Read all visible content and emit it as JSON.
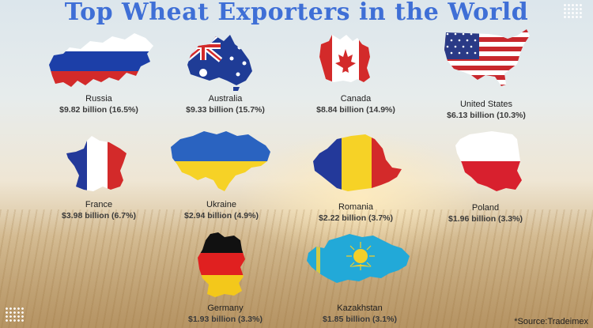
{
  "title": "Top Wheat Exporters in the World",
  "source": "*Source:Tradeimex",
  "countries": [
    {
      "name": "Russia",
      "value": "$9.82 billion (16.5%)"
    },
    {
      "name": "Australia",
      "value": "$9.33 billion (15.7%)"
    },
    {
      "name": "Canada",
      "value": "$8.84 billion (14.9%)"
    },
    {
      "name": "United States",
      "value": "$6.13 billion (10.3%)"
    },
    {
      "name": "France",
      "value": "$3.98 billion (6.7%)"
    },
    {
      "name": "Ukraine",
      "value": "$2.94 billion (4.9%)"
    },
    {
      "name": "Romania",
      "value": "$2.22 billion (3.7%)"
    },
    {
      "name": "Poland",
      "value": "$1.96 billion (3.3%)"
    },
    {
      "name": "Germany",
      "value": "$1.93 billion (3.3%)"
    },
    {
      "name": "Kazakhstan",
      "value": "$1.85 billion (3.1%)"
    }
  ],
  "colors": {
    "title": "#3f6fd6",
    "russia_white": "#ffffff",
    "russia_blue": "#1c3fa8",
    "russia_red": "#d32a2a"
  }
}
